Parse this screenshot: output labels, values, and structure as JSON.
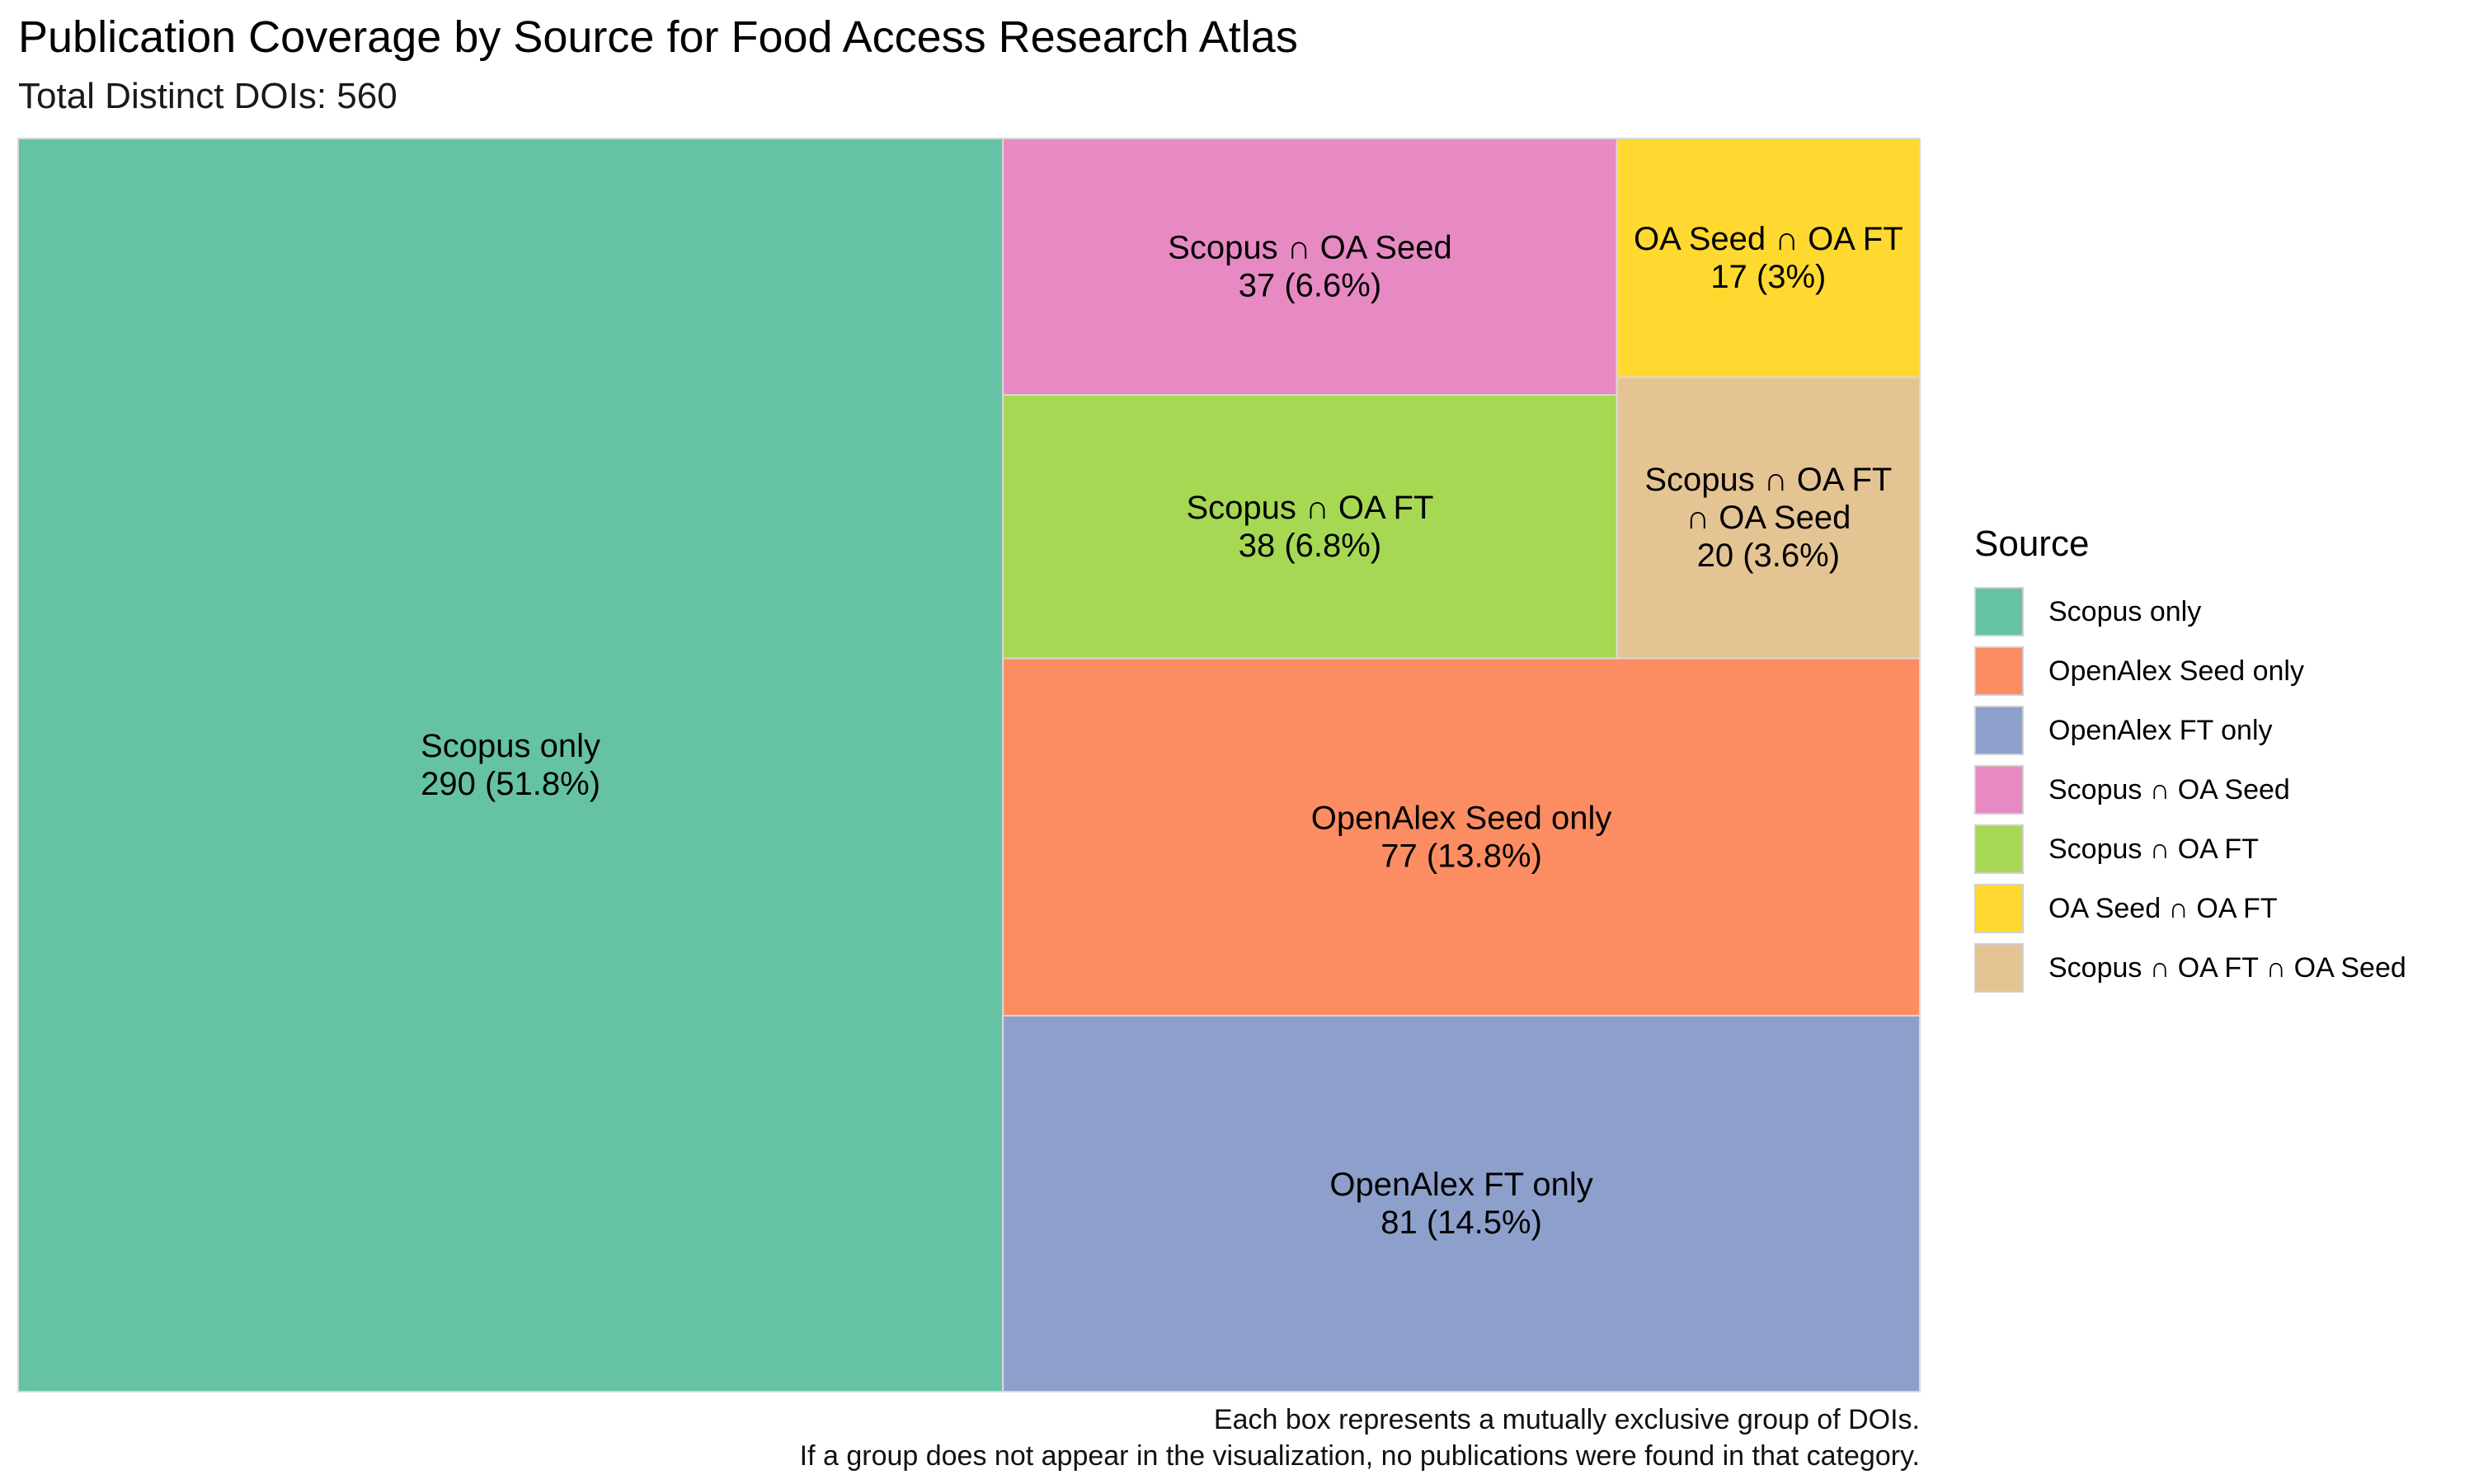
{
  "title": "Publication Coverage by Source for Food Access Research Atlas",
  "subtitle": "Total Distinct DOIs: 560",
  "caption_line1": "Each box represents a mutually exclusive group of DOIs.",
  "caption_line2": "If a group does not appear in the visualization, no publications were found in that category.",
  "legend_title": "Source",
  "chart_data": {
    "type": "treemap",
    "total": 560,
    "series": [
      {
        "name": "Scopus only",
        "value": 290,
        "percent": 51.8,
        "label": "290 (51.8%)",
        "color": "#66C2A5"
      },
      {
        "name": "OpenAlex Seed only",
        "value": 77,
        "percent": 13.8,
        "label": "77 (13.8%)",
        "color": "#FC8D62"
      },
      {
        "name": "OpenAlex FT only",
        "value": 81,
        "percent": 14.5,
        "label": "81 (14.5%)",
        "color": "#8DA0CB"
      },
      {
        "name": "Scopus ∩ OA Seed",
        "value": 37,
        "percent": 6.6,
        "label": "37 (6.6%)",
        "color": "#E78AC3"
      },
      {
        "name": "Scopus ∩ OA FT",
        "value": 38,
        "percent": 6.8,
        "label": "38 (6.8%)",
        "color": "#A6D854"
      },
      {
        "name": "OA Seed ∩ OA FT",
        "value": 17,
        "percent": 3,
        "label": "17 (3%)",
        "color": "#FFD92F"
      },
      {
        "name": "Scopus ∩ OA FT ∩ OA Seed",
        "value": 20,
        "percent": 3.6,
        "label": "20 (3.6%)",
        "color": "#E5C494"
      }
    ]
  }
}
